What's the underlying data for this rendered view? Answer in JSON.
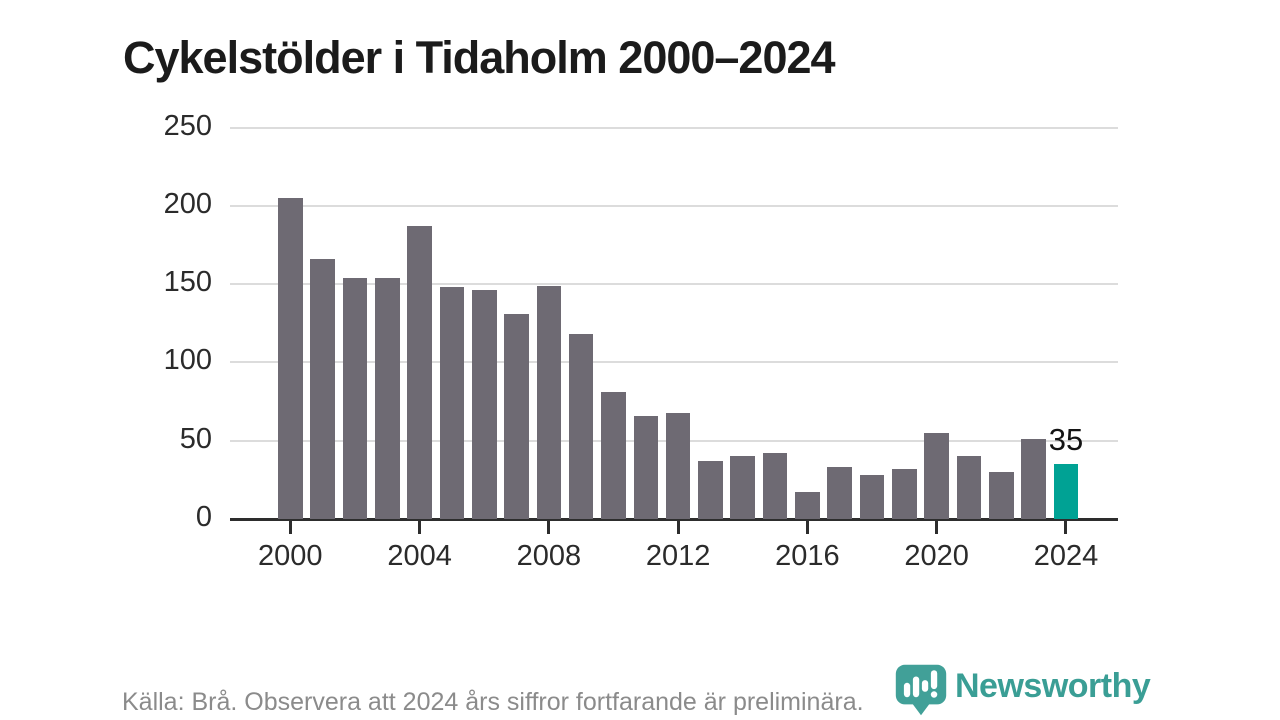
{
  "chart_data": {
    "type": "bar",
    "title": "Cykelstölder i Tidaholm 2000–2024",
    "categories": [
      "2000",
      "2001",
      "2002",
      "2003",
      "2004",
      "2005",
      "2006",
      "2007",
      "2008",
      "2009",
      "2010",
      "2011",
      "2012",
      "2013",
      "2014",
      "2015",
      "2016",
      "2017",
      "2018",
      "2019",
      "2020",
      "2021",
      "2022",
      "2023",
      "2024"
    ],
    "values": [
      205,
      166,
      154,
      154,
      187,
      148,
      146,
      131,
      149,
      118,
      81,
      66,
      68,
      37,
      40,
      42,
      17,
      33,
      28,
      32,
      55,
      40,
      30,
      51,
      35
    ],
    "xlabel": "",
    "ylabel": "",
    "yticks": [
      0,
      50,
      100,
      150,
      200,
      250
    ],
    "ylim": [
      0,
      250
    ],
    "xtick_labels": [
      "2000",
      "2004",
      "2008",
      "2012",
      "2016",
      "2020",
      "2024"
    ],
    "grid": "horizontal",
    "legend": "none",
    "bar_color": "#6e6a73",
    "gridline_color": "#dcdcdc",
    "axis_color": "#2d2d2d",
    "highlight": {
      "category": "2024",
      "value": 35,
      "value_label": "35",
      "color": "#00a294"
    }
  },
  "footer": {
    "source_note": "Källa: Brå. Observera att 2024 års siffror fortfarande är preliminära."
  },
  "branding": {
    "logo_text": "Newsworthy",
    "logo_color": "#3a9e95",
    "icon": "newsworthy-bubble-chart-icon",
    "icon_color": "#41a098"
  }
}
